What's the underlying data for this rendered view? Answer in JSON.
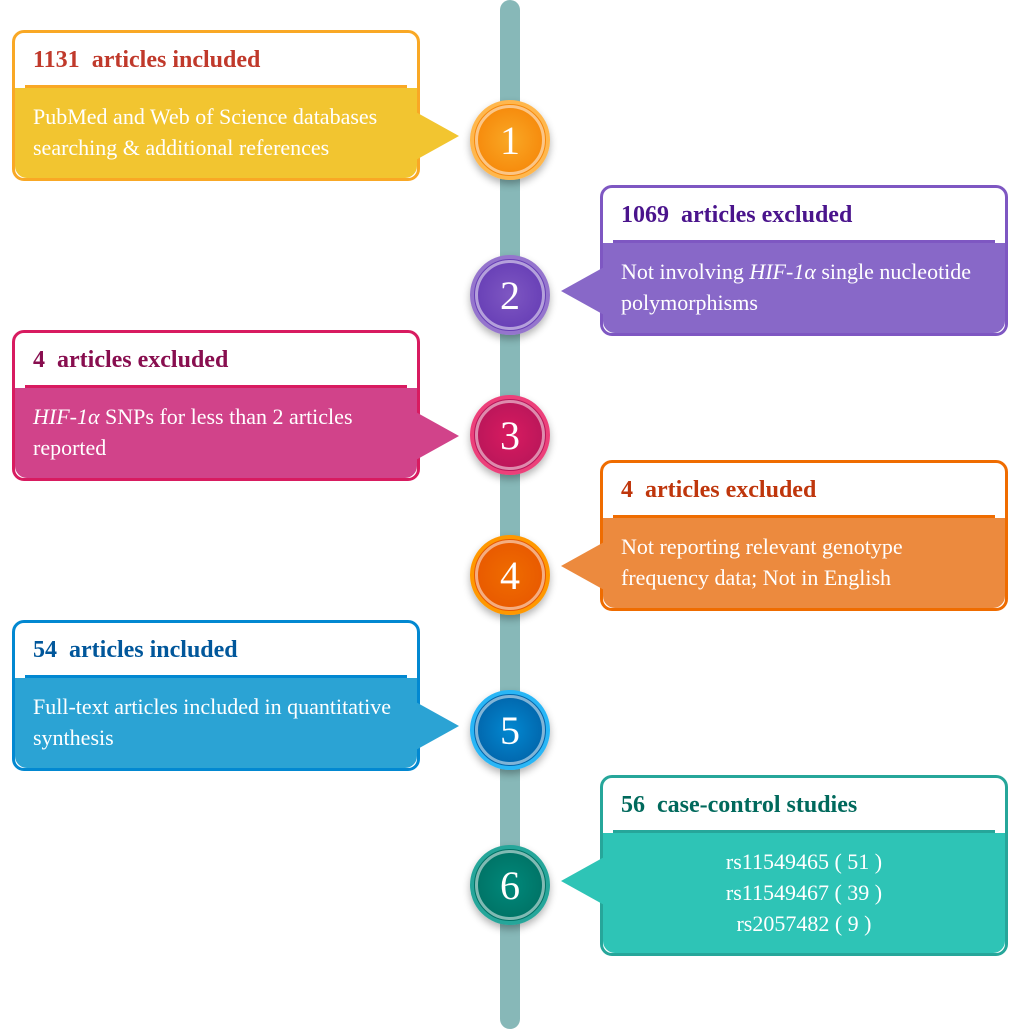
{
  "timeline": {
    "color": "#87b8b8"
  },
  "steps": [
    {
      "num": "1",
      "header_count": "1131",
      "header_text": "articles included",
      "body_html": "PubMed and Web of Science databases searching & additional references",
      "side": "left",
      "circle_color": "#f9a825",
      "body_color": "#f2c530",
      "header_text_color": "#c0392b"
    },
    {
      "num": "2",
      "header_count": "1069",
      "header_text": "articles excluded",
      "body_html": "Not involving <span class=\"italic\">HIF-1α</span> single nucleotide polymorphisms",
      "side": "right",
      "circle_color": "#7e57c2",
      "body_color": "#8868c8",
      "header_text_color": "#4a148c"
    },
    {
      "num": "3",
      "header_count": "4",
      "header_text": "articles excluded",
      "body_html": "<span class=\"italic\">HIF-1α</span> SNPs for less than 2 articles reported",
      "side": "left",
      "circle_color": "#d81b60",
      "body_color": "#d1438a",
      "header_text_color": "#880e4f"
    },
    {
      "num": "4",
      "header_count": "4",
      "header_text": "articles excluded",
      "body_html": "Not reporting relevant genotype frequency data; Not in English",
      "side": "right",
      "circle_color": "#ef6c00",
      "body_color": "#ec8a3e",
      "header_text_color": "#bf360c"
    },
    {
      "num": "5",
      "header_count": "54",
      "header_text": "articles included",
      "body_html": "Full-text articles included in quantitative synthesis",
      "side": "left",
      "circle_color": "#0288d1",
      "body_color": "#2ba3d4",
      "header_text_color": "#01579b"
    },
    {
      "num": "6",
      "header_count": "56",
      "header_text": "case-control studies",
      "body_lines": [
        "rs11549465 ( 51 )",
        "rs11549467 ( 39 )",
        "rs2057482 ( 9 )"
      ],
      "side": "right",
      "circle_color": "#00897b",
      "body_color": "#2ec4b6",
      "header_text_color": "#00695c"
    }
  ]
}
